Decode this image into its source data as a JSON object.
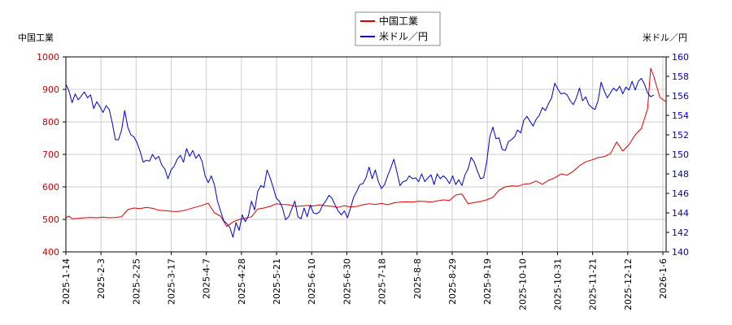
{
  "chart_data": {
    "type": "line",
    "left_axis_title": "中国工業",
    "right_axis_title": "米ドル／円",
    "left_ylim": [
      400,
      1000
    ],
    "left_ticks": [
      400,
      500,
      600,
      700,
      800,
      900,
      1000
    ],
    "right_ylim": [
      140,
      160
    ],
    "right_ticks": [
      140,
      142,
      144,
      146,
      148,
      150,
      152,
      154,
      156,
      158,
      160
    ],
    "x_tick_labels": [
      "2025-1-14",
      "2025-2-3",
      "2025-2-25",
      "2025-3-17",
      "2025-4-7",
      "2025-4-28",
      "2025-5-21",
      "2025-6-10",
      "2025-6-30",
      "2025-7-18",
      "2025-8-8",
      "2025-8-29",
      "2025-9-19",
      "2025-10-10",
      "2025-10-31",
      "2025-11-21",
      "2025-12-12",
      "2026-1-6"
    ],
    "grid": true,
    "legend_position": "top-center",
    "colors": {
      "left_axis": "#cc0000",
      "right_axis": "#0000cc",
      "grid": "#cccccc"
    },
    "series": [
      {
        "name": "中国工業",
        "axis": "left",
        "color": "#dd0000",
        "points": [
          [
            0,
            505
          ],
          [
            0.5,
            510
          ],
          [
            1,
            502
          ],
          [
            2,
            503
          ],
          [
            3,
            505
          ],
          [
            4,
            506
          ],
          [
            5,
            505
          ],
          [
            6,
            507
          ],
          [
            7,
            505
          ],
          [
            8,
            506
          ],
          [
            9,
            508
          ],
          [
            10,
            530
          ],
          [
            11,
            535
          ],
          [
            12,
            533
          ],
          [
            13,
            537
          ],
          [
            14,
            534
          ],
          [
            15,
            528
          ],
          [
            16,
            527
          ],
          [
            17,
            525
          ],
          [
            18,
            524
          ],
          [
            19,
            527
          ],
          [
            20,
            532
          ],
          [
            21,
            538
          ],
          [
            22,
            543
          ],
          [
            23,
            550
          ],
          [
            24,
            520
          ],
          [
            25,
            510
          ],
          [
            26,
            478
          ],
          [
            27,
            492
          ],
          [
            28,
            500
          ],
          [
            29,
            503
          ],
          [
            30,
            508
          ],
          [
            31,
            532
          ],
          [
            32,
            535
          ],
          [
            33,
            540
          ],
          [
            34,
            548
          ],
          [
            35,
            546
          ],
          [
            36,
            545
          ],
          [
            37,
            540
          ],
          [
            38,
            541
          ],
          [
            39,
            543
          ],
          [
            40,
            541
          ],
          [
            41,
            545
          ],
          [
            42,
            542
          ],
          [
            43,
            540
          ],
          [
            44,
            537
          ],
          [
            45,
            542
          ],
          [
            46,
            538
          ],
          [
            47,
            540
          ],
          [
            48,
            545
          ],
          [
            49,
            548
          ],
          [
            50,
            546
          ],
          [
            51,
            549
          ],
          [
            52,
            545
          ],
          [
            53,
            551
          ],
          [
            54,
            553
          ],
          [
            55,
            554
          ],
          [
            56,
            553
          ],
          [
            57,
            556
          ],
          [
            58,
            555
          ],
          [
            59,
            553
          ],
          [
            60,
            557
          ],
          [
            61,
            560
          ],
          [
            62,
            558
          ],
          [
            63,
            575
          ],
          [
            64,
            578
          ],
          [
            65,
            548
          ],
          [
            66,
            552
          ],
          [
            67,
            555
          ],
          [
            68,
            560
          ],
          [
            69,
            568
          ],
          [
            70,
            590
          ],
          [
            71,
            600
          ],
          [
            72,
            603
          ],
          [
            73,
            602
          ],
          [
            74,
            608
          ],
          [
            75,
            610
          ],
          [
            76,
            618
          ],
          [
            77,
            608
          ],
          [
            78,
            620
          ],
          [
            79,
            628
          ],
          [
            80,
            640
          ],
          [
            81,
            636
          ],
          [
            82,
            648
          ],
          [
            83,
            665
          ],
          [
            84,
            677
          ],
          [
            85,
            683
          ],
          [
            86,
            690
          ],
          [
            87,
            693
          ],
          [
            88,
            702
          ],
          [
            89,
            738
          ],
          [
            90,
            710
          ],
          [
            91,
            730
          ],
          [
            92,
            760
          ],
          [
            93,
            780
          ],
          [
            94,
            840
          ],
          [
            94.5,
            965
          ],
          [
            95,
            940
          ],
          [
            96,
            875
          ],
          [
            97,
            862
          ]
        ]
      },
      {
        "name": "米ドル／円",
        "axis": "right",
        "color": "#0000cc",
        "points": [
          [
            0,
            157.2
          ],
          [
            0.5,
            156.5
          ],
          [
            1,
            155.3
          ],
          [
            1.5,
            156.2
          ],
          [
            2,
            155.6
          ],
          [
            2.5,
            156
          ],
          [
            3,
            156.4
          ],
          [
            3.5,
            155.8
          ],
          [
            4,
            156.1
          ],
          [
            4.5,
            154.7
          ],
          [
            5,
            155.4
          ],
          [
            5.5,
            154.9
          ],
          [
            6,
            154.3
          ],
          [
            6.5,
            155
          ],
          [
            7,
            154.6
          ],
          [
            7.5,
            153.2
          ],
          [
            8,
            151.5
          ],
          [
            8.5,
            151.5
          ],
          [
            9,
            152.5
          ],
          [
            9.5,
            154.5
          ],
          [
            10,
            152.8
          ],
          [
            10.5,
            152
          ],
          [
            11,
            151.8
          ],
          [
            11.5,
            151.2
          ],
          [
            12,
            150.3
          ],
          [
            12.5,
            149.2
          ],
          [
            13,
            149.4
          ],
          [
            13.5,
            149.3
          ],
          [
            14,
            150
          ],
          [
            14.5,
            149.5
          ],
          [
            15,
            149.8
          ],
          [
            15.5,
            148.9
          ],
          [
            16,
            148.5
          ],
          [
            16.5,
            147.5
          ],
          [
            17,
            148.4
          ],
          [
            17.5,
            148.8
          ],
          [
            18,
            149.5
          ],
          [
            18.5,
            149.9
          ],
          [
            19,
            149.2
          ],
          [
            19.5,
            150.6
          ],
          [
            20,
            149.8
          ],
          [
            20.5,
            150.4
          ],
          [
            21,
            149.6
          ],
          [
            21.5,
            150
          ],
          [
            22,
            149.3
          ],
          [
            22.5,
            147.8
          ],
          [
            23,
            147.1
          ],
          [
            23.5,
            147.8
          ],
          [
            24,
            146.9
          ],
          [
            24.5,
            145.2
          ],
          [
            25,
            144.2
          ],
          [
            25.5,
            143.2
          ],
          [
            26,
            142.9
          ],
          [
            26.5,
            142.5
          ],
          [
            27,
            141.5
          ],
          [
            27.5,
            143
          ],
          [
            28,
            142.2
          ],
          [
            28.5,
            143.8
          ],
          [
            29,
            143.1
          ],
          [
            29.5,
            143.7
          ],
          [
            30,
            145.2
          ],
          [
            30.5,
            144.3
          ],
          [
            31,
            146.2
          ],
          [
            31.5,
            146.8
          ],
          [
            32,
            146.6
          ],
          [
            32.5,
            148.4
          ],
          [
            33,
            147.6
          ],
          [
            33.5,
            146.6
          ],
          [
            34,
            145.5
          ],
          [
            34.5,
            145.2
          ],
          [
            35,
            144.5
          ],
          [
            35.5,
            143.3
          ],
          [
            36,
            143.6
          ],
          [
            36.5,
            144.4
          ],
          [
            37,
            145.2
          ],
          [
            37.5,
            143.6
          ],
          [
            38,
            143.4
          ],
          [
            38.5,
            144.5
          ],
          [
            39,
            143.6
          ],
          [
            39.5,
            144.8
          ],
          [
            40,
            144
          ],
          [
            40.5,
            143.9
          ],
          [
            41,
            144.1
          ],
          [
            41.5,
            144.8
          ],
          [
            42,
            145.2
          ],
          [
            42.5,
            145.8
          ],
          [
            43,
            145.5
          ],
          [
            43.5,
            144.8
          ],
          [
            44,
            144.2
          ],
          [
            44.5,
            143.8
          ],
          [
            45,
            144.2
          ],
          [
            45.5,
            143.5
          ],
          [
            46,
            144.5
          ],
          [
            46.5,
            145.6
          ],
          [
            47,
            146.2
          ],
          [
            47.5,
            146.9
          ],
          [
            48,
            147
          ],
          [
            48.5,
            147.6
          ],
          [
            49,
            148.7
          ],
          [
            49.5,
            147.5
          ],
          [
            50,
            148.4
          ],
          [
            50.5,
            147.2
          ],
          [
            51,
            146.5
          ],
          [
            51.5,
            146.9
          ],
          [
            52,
            147.8
          ],
          [
            52.5,
            148.6
          ],
          [
            53,
            149.5
          ],
          [
            53.5,
            148.2
          ],
          [
            54,
            146.8
          ],
          [
            54.5,
            147.2
          ],
          [
            55,
            147.3
          ],
          [
            55.5,
            147.8
          ],
          [
            56,
            147.5
          ],
          [
            56.5,
            147.6
          ],
          [
            57,
            147.2
          ],
          [
            57.5,
            148
          ],
          [
            58,
            147.2
          ],
          [
            58.5,
            147.6
          ],
          [
            59,
            147.9
          ],
          [
            59.5,
            146.9
          ],
          [
            60,
            148
          ],
          [
            60.5,
            147.5
          ],
          [
            61,
            147.8
          ],
          [
            61.5,
            147.5
          ],
          [
            62,
            147
          ],
          [
            62.5,
            147.8
          ],
          [
            63,
            146.9
          ],
          [
            63.5,
            147.4
          ],
          [
            64,
            146.8
          ],
          [
            64.5,
            147.9
          ],
          [
            65,
            148.5
          ],
          [
            65.5,
            149.7
          ],
          [
            66,
            149.2
          ],
          [
            66.5,
            148.3
          ],
          [
            67,
            147.5
          ],
          [
            67.5,
            147.6
          ],
          [
            68,
            149.2
          ],
          [
            68.5,
            151.8
          ],
          [
            69,
            152.8
          ],
          [
            69.5,
            151.6
          ],
          [
            70,
            151.7
          ],
          [
            70.5,
            150.5
          ],
          [
            71,
            150.4
          ],
          [
            71.5,
            151.3
          ],
          [
            72,
            151.5
          ],
          [
            72.5,
            151.8
          ],
          [
            73,
            152.5
          ],
          [
            73.5,
            152.2
          ],
          [
            74,
            153.5
          ],
          [
            74.5,
            153.9
          ],
          [
            75,
            153.4
          ],
          [
            75.5,
            152.9
          ],
          [
            76,
            153.6
          ],
          [
            76.5,
            154
          ],
          [
            77,
            154.8
          ],
          [
            77.5,
            154.5
          ],
          [
            78,
            155.2
          ],
          [
            78.5,
            155.8
          ],
          [
            79,
            157.3
          ],
          [
            79.5,
            156.7
          ],
          [
            80,
            156.2
          ],
          [
            80.5,
            156.3
          ],
          [
            81,
            156.1
          ],
          [
            81.5,
            155.5
          ],
          [
            82,
            155.1
          ],
          [
            82.5,
            155.8
          ],
          [
            83,
            156.8
          ],
          [
            83.5,
            155.5
          ],
          [
            84,
            155.9
          ],
          [
            84.5,
            155.1
          ],
          [
            85,
            154.8
          ],
          [
            85.5,
            154.6
          ],
          [
            86,
            155.5
          ],
          [
            86.5,
            157.4
          ],
          [
            87,
            156.5
          ],
          [
            87.5,
            155.8
          ],
          [
            88,
            156.3
          ],
          [
            88.5,
            156.8
          ],
          [
            89,
            156.5
          ],
          [
            89.5,
            157
          ],
          [
            90,
            156.2
          ],
          [
            90.5,
            156.9
          ],
          [
            91,
            156.6
          ],
          [
            91.5,
            157.5
          ],
          [
            92,
            156.6
          ],
          [
            92.5,
            157.5
          ],
          [
            93,
            157.8
          ],
          [
            93.5,
            157.2
          ],
          [
            94,
            156.3
          ],
          [
            94.5,
            155.9
          ],
          [
            95,
            156.1
          ]
        ]
      }
    ]
  }
}
